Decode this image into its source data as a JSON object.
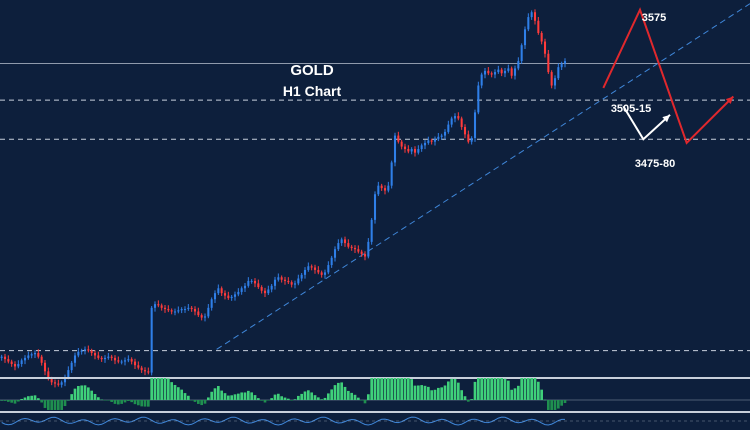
{
  "chart_data": {
    "type": "candlestick",
    "title": "GOLD",
    "subtitle": "H1 Chart",
    "colors": {
      "background": "#0d1f3c",
      "up_candle": "#2f7fe8",
      "down_candle": "#ff3b3b",
      "level_line": "#c7cfdb",
      "trend_line": "#3f86d8",
      "bearish_path": "#e0282d",
      "bullish_path": "#ffffff",
      "oscillator_up": "#3fd07a",
      "oscillator_down": "#1f8f4f"
    },
    "price_ylim": [
      3285,
      3592
    ],
    "levels": [
      {
        "label": "",
        "price": 3540,
        "style": "solid"
      },
      {
        "label": "3505-15",
        "price": 3510,
        "style": "dashed"
      },
      {
        "label": "3475-80",
        "price": 3478,
        "style": "dashed"
      },
      {
        "label": "",
        "price": 3305,
        "style": "dashed"
      }
    ],
    "annotations": [
      {
        "label": "3575",
        "price": 3575
      }
    ],
    "trendline": {
      "from": [
        65,
        3306
      ],
      "to": [
        186,
        3520
      ]
    },
    "close_path": [
      3300,
      3298,
      3296,
      3294,
      3292,
      3294,
      3297,
      3299,
      3301,
      3302,
      3303,
      3300,
      3295,
      3288,
      3282,
      3279,
      3278,
      3277,
      3279,
      3283,
      3289,
      3295,
      3301,
      3304,
      3305,
      3306,
      3305,
      3303,
      3301,
      3299,
      3298,
      3299,
      3300,
      3299,
      3297,
      3296,
      3296,
      3297,
      3298,
      3296,
      3293,
      3291,
      3289,
      3288,
      3287,
      3340,
      3343,
      3342,
      3340,
      3339,
      3338,
      3337,
      3337,
      3338,
      3339,
      3339,
      3340,
      3339,
      3337,
      3334,
      3332,
      3333,
      3340,
      3347,
      3352,
      3356,
      3352,
      3350,
      3348,
      3349,
      3351,
      3353,
      3356,
      3358,
      3362,
      3362,
      3360,
      3357,
      3354,
      3352,
      3355,
      3358,
      3363,
      3365,
      3363,
      3362,
      3361,
      3359,
      3360,
      3364,
      3367,
      3371,
      3374,
      3373,
      3371,
      3369,
      3367,
      3369,
      3375,
      3381,
      3388,
      3393,
      3396,
      3393,
      3390,
      3389,
      3388,
      3386,
      3384,
      3382,
      3394,
      3412,
      3433,
      3440,
      3438,
      3436,
      3440,
      3459,
      3481,
      3476,
      3472,
      3470,
      3468,
      3470,
      3467,
      3470,
      3473,
      3475,
      3477,
      3476,
      3478,
      3480,
      3481,
      3484,
      3490,
      3495,
      3497,
      3495,
      3488,
      3482,
      3476,
      3479,
      3500,
      3522,
      3531,
      3534,
      3532,
      3531,
      3533,
      3535,
      3532,
      3534,
      3536,
      3530,
      3536,
      3542,
      3555,
      3568,
      3578,
      3582,
      3575,
      3565,
      3558,
      3548,
      3533,
      3522,
      3528,
      3537,
      3540,
      3542
    ],
    "projection_red": [
      [
        181,
        3520
      ],
      [
        192,
        3584
      ],
      [
        206,
        3475
      ],
      [
        220,
        3513
      ]
    ],
    "projection_white": [
      [
        187,
        3505
      ],
      [
        193,
        3478
      ],
      [
        201,
        3498
      ]
    ],
    "x_range": [
      0,
      225
    ]
  }
}
